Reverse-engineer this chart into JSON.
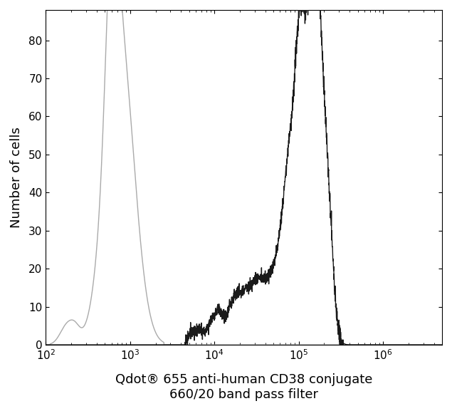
{
  "title_line1": "Qdot® 655 anti-human CD38 conjugate",
  "title_line2": "660/20 band pass filter",
  "ylabel": "Number of cells",
  "xlim_log_min": 2.0,
  "xlim_log_max": 6.7,
  "ylim": [
    0,
    88
  ],
  "yticks": [
    0,
    10,
    20,
    30,
    40,
    50,
    60,
    70,
    80
  ],
  "background_color": "#ffffff",
  "plot_bg_color": "#ffffff",
  "isotype_color": "#aaaaaa",
  "sample_color": "#1a1a1a",
  "linewidth_iso": 1.0,
  "linewidth_sample": 1.0,
  "title_fontsize": 13,
  "label_fontsize": 13,
  "tick_fontsize": 11
}
